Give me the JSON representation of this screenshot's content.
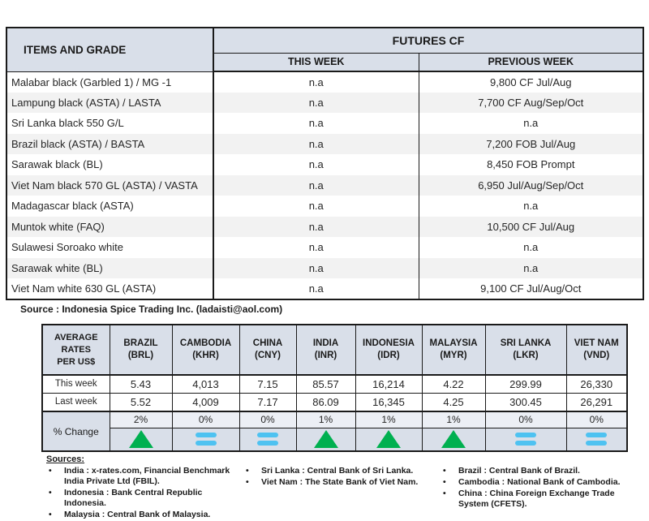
{
  "futures_table": {
    "col1_header": "ITEMS AND GRADE",
    "group_header": "FUTURES CF",
    "subheaders": [
      "THIS WEEK",
      "PREVIOUS WEEK"
    ],
    "rows": [
      {
        "item": "Malabar black (Garbled 1) / MG -1",
        "this_week": "n.a",
        "previous_week": "9,800 CF Jul/Aug"
      },
      {
        "item": "Lampung black (ASTA) / LASTA",
        "this_week": "n.a",
        "previous_week": "7,700 CF Aug/Sep/Oct"
      },
      {
        "item": "Sri Lanka black 550 G/L",
        "this_week": "n.a",
        "previous_week": "n.a"
      },
      {
        "item": "Brazil black (ASTA) / BASTA",
        "this_week": "n.a",
        "previous_week": "7,200 FOB Jul/Aug"
      },
      {
        "item": "Sarawak black (BL)",
        "this_week": "n.a",
        "previous_week": "8,450 FOB Prompt"
      },
      {
        "item": "Viet Nam black 570 GL (ASTA) / VASTA",
        "this_week": "n.a",
        "previous_week": "6,950 Jul/Aug/Sep/Oct"
      },
      {
        "item": "Madagascar black (ASTA)",
        "this_week": "n.a",
        "previous_week": "n.a"
      },
      {
        "item": "Muntok white (FAQ)",
        "this_week": "n.a",
        "previous_week": "10,500 CF Jul/Aug"
      },
      {
        "item": "Sulawesi Soroako white",
        "this_week": "n.a",
        "previous_week": "n.a"
      },
      {
        "item": "Sarawak  white (BL)",
        "this_week": "n.a",
        "previous_week": "n.a"
      },
      {
        "item": "Viet Nam white 630 GL (ASTA)",
        "this_week": "n.a",
        "previous_week": "9,100 CF Jul/Aug/Oct"
      }
    ],
    "source_note": "Source : Indonesia Spice Trading Inc. (ladaisti@aol.com)"
  },
  "rates_table": {
    "corner_header": [
      "AVERAGE",
      "RATES",
      "PER US$"
    ],
    "row_labels": {
      "this_week": "This week",
      "last_week": "Last week",
      "pct_change": "% Change"
    },
    "columns": [
      {
        "country": "BRAZIL",
        "currency": "(BRL)",
        "this_week": "5.43",
        "last_week": "5.52",
        "pct_change": "2%",
        "trend": "up"
      },
      {
        "country": "CAMBODIA",
        "currency": "(KHR)",
        "this_week": "4,013",
        "last_week": "4,009",
        "pct_change": "0%",
        "trend": "equal"
      },
      {
        "country": "CHINA",
        "currency": "(CNY)",
        "this_week": "7.15",
        "last_week": "7.17",
        "pct_change": "0%",
        "trend": "equal"
      },
      {
        "country": "INDIA",
        "currency": "(INR)",
        "this_week": "85.57",
        "last_week": "86.09",
        "pct_change": "1%",
        "trend": "up"
      },
      {
        "country": "INDONESIA",
        "currency": "(IDR)",
        "this_week": "16,214",
        "last_week": "16,345",
        "pct_change": "1%",
        "trend": "up"
      },
      {
        "country": "MALAYSIA",
        "currency": "(MYR)",
        "this_week": "4.22",
        "last_week": "4.25",
        "pct_change": "1%",
        "trend": "up"
      },
      {
        "country": "SRI LANKA",
        "currency": "(LKR)",
        "this_week": "299.99",
        "last_week": "300.45",
        "pct_change": "0%",
        "trend": "equal"
      },
      {
        "country": "VIET NAM",
        "currency": "(VND)",
        "this_week": "26,330",
        "last_week": "26,291",
        "pct_change": "0%",
        "trend": "equal"
      }
    ]
  },
  "sources": {
    "title": "Sources:",
    "columns": [
      [
        "India : x-rates.com, Financial Benchmark India Private Ltd (FBIL).",
        "Indonesia : Bank Central Republic Indonesia.",
        "Malaysia : Central Bank of Malaysia."
      ],
      [
        "Sri Lanka : Central Bank of Sri Lanka.",
        "Viet Nam : The State Bank of Viet Nam."
      ],
      [
        "Brazil :  Central Bank of Brazil.",
        "Cambodia : National Bank of Cambodia.",
        "China : China Foreign Exchange Trade System (CFETS)."
      ]
    ]
  },
  "colors": {
    "header_bg": "#d9dfe9",
    "row_alt_bg": "#f2f2f2",
    "trend_up_green": "#00b050",
    "trend_equal_blue": "#4ec2f1"
  }
}
